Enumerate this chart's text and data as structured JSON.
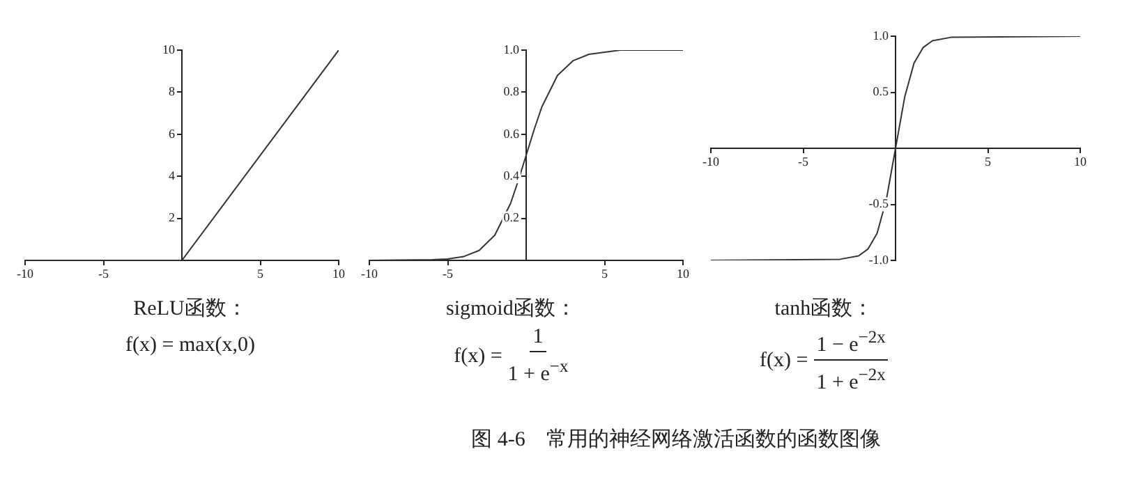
{
  "chart_data": [
    {
      "type": "line",
      "x": [
        -10,
        0,
        10
      ],
      "series": [
        {
          "color": "#333333",
          "values": [
            0,
            0,
            10
          ]
        }
      ],
      "xlim": [
        -10,
        10
      ],
      "ylim": [
        0,
        10
      ],
      "xticks": [
        -10,
        -5,
        5,
        10
      ],
      "yticks": [
        2,
        4,
        6,
        8,
        10
      ],
      "annotations": [
        "ReLU函数：",
        "f(x) = max(x,0)"
      ]
    },
    {
      "type": "line",
      "x": [
        -10,
        -6,
        -5,
        -4,
        -3,
        -2,
        -1,
        -0.5,
        0,
        0.5,
        1,
        2,
        3,
        4,
        5,
        6,
        10
      ],
      "series": [
        {
          "color": "#333333",
          "values": [
            0,
            0.003,
            0.007,
            0.018,
            0.047,
            0.12,
            0.27,
            0.38,
            0.5,
            0.62,
            0.73,
            0.88,
            0.95,
            0.98,
            0.99,
            1.0,
            1.0
          ]
        }
      ],
      "xlim": [
        -10,
        10
      ],
      "ylim": [
        0,
        1
      ],
      "xticks": [
        -10,
        -5,
        5,
        10
      ],
      "yticks": [
        {
          "value": 0.2,
          "label": "0.2"
        },
        {
          "value": 0.4,
          "label": "0.4"
        },
        {
          "value": 0.6,
          "label": "0.6"
        },
        {
          "value": 0.8,
          "label": "0.8"
        },
        {
          "value": 1,
          "label": "1.0"
        }
      ],
      "annotations": [
        "sigmoid函数：",
        "f(x) =",
        "1",
        "1 + e$^{−x}$"
      ]
    },
    {
      "type": "line",
      "x": [
        -10,
        -3,
        -2,
        -1.5,
        -1,
        -0.5,
        0,
        0.5,
        1,
        1.5,
        2,
        3,
        10
      ],
      "series": [
        {
          "color": "#333333",
          "values": [
            -1,
            -0.99,
            -0.96,
            -0.9,
            -0.76,
            -0.46,
            0,
            0.46,
            0.76,
            0.9,
            0.96,
            0.99,
            1
          ]
        }
      ],
      "xlim": [
        -10,
        10
      ],
      "ylim": [
        -1,
        1
      ],
      "xticks": [
        -10,
        -5,
        5,
        10
      ],
      "yticks": [
        {
          "value": -1,
          "label": "-1.0"
        },
        {
          "value": -0.5,
          "label": "-0.5"
        },
        {
          "value": 0.5,
          "label": "0.5"
        },
        {
          "value": 1,
          "label": "1.0"
        }
      ],
      "annotations": [
        "tanh函数：",
        "f(x) =",
        "1 − e$^{−2x}$",
        "1 + e$^{−2x}$",
        "图 4-6　常用的神经网络激活函数的函数图像"
      ]
    }
  ]
}
